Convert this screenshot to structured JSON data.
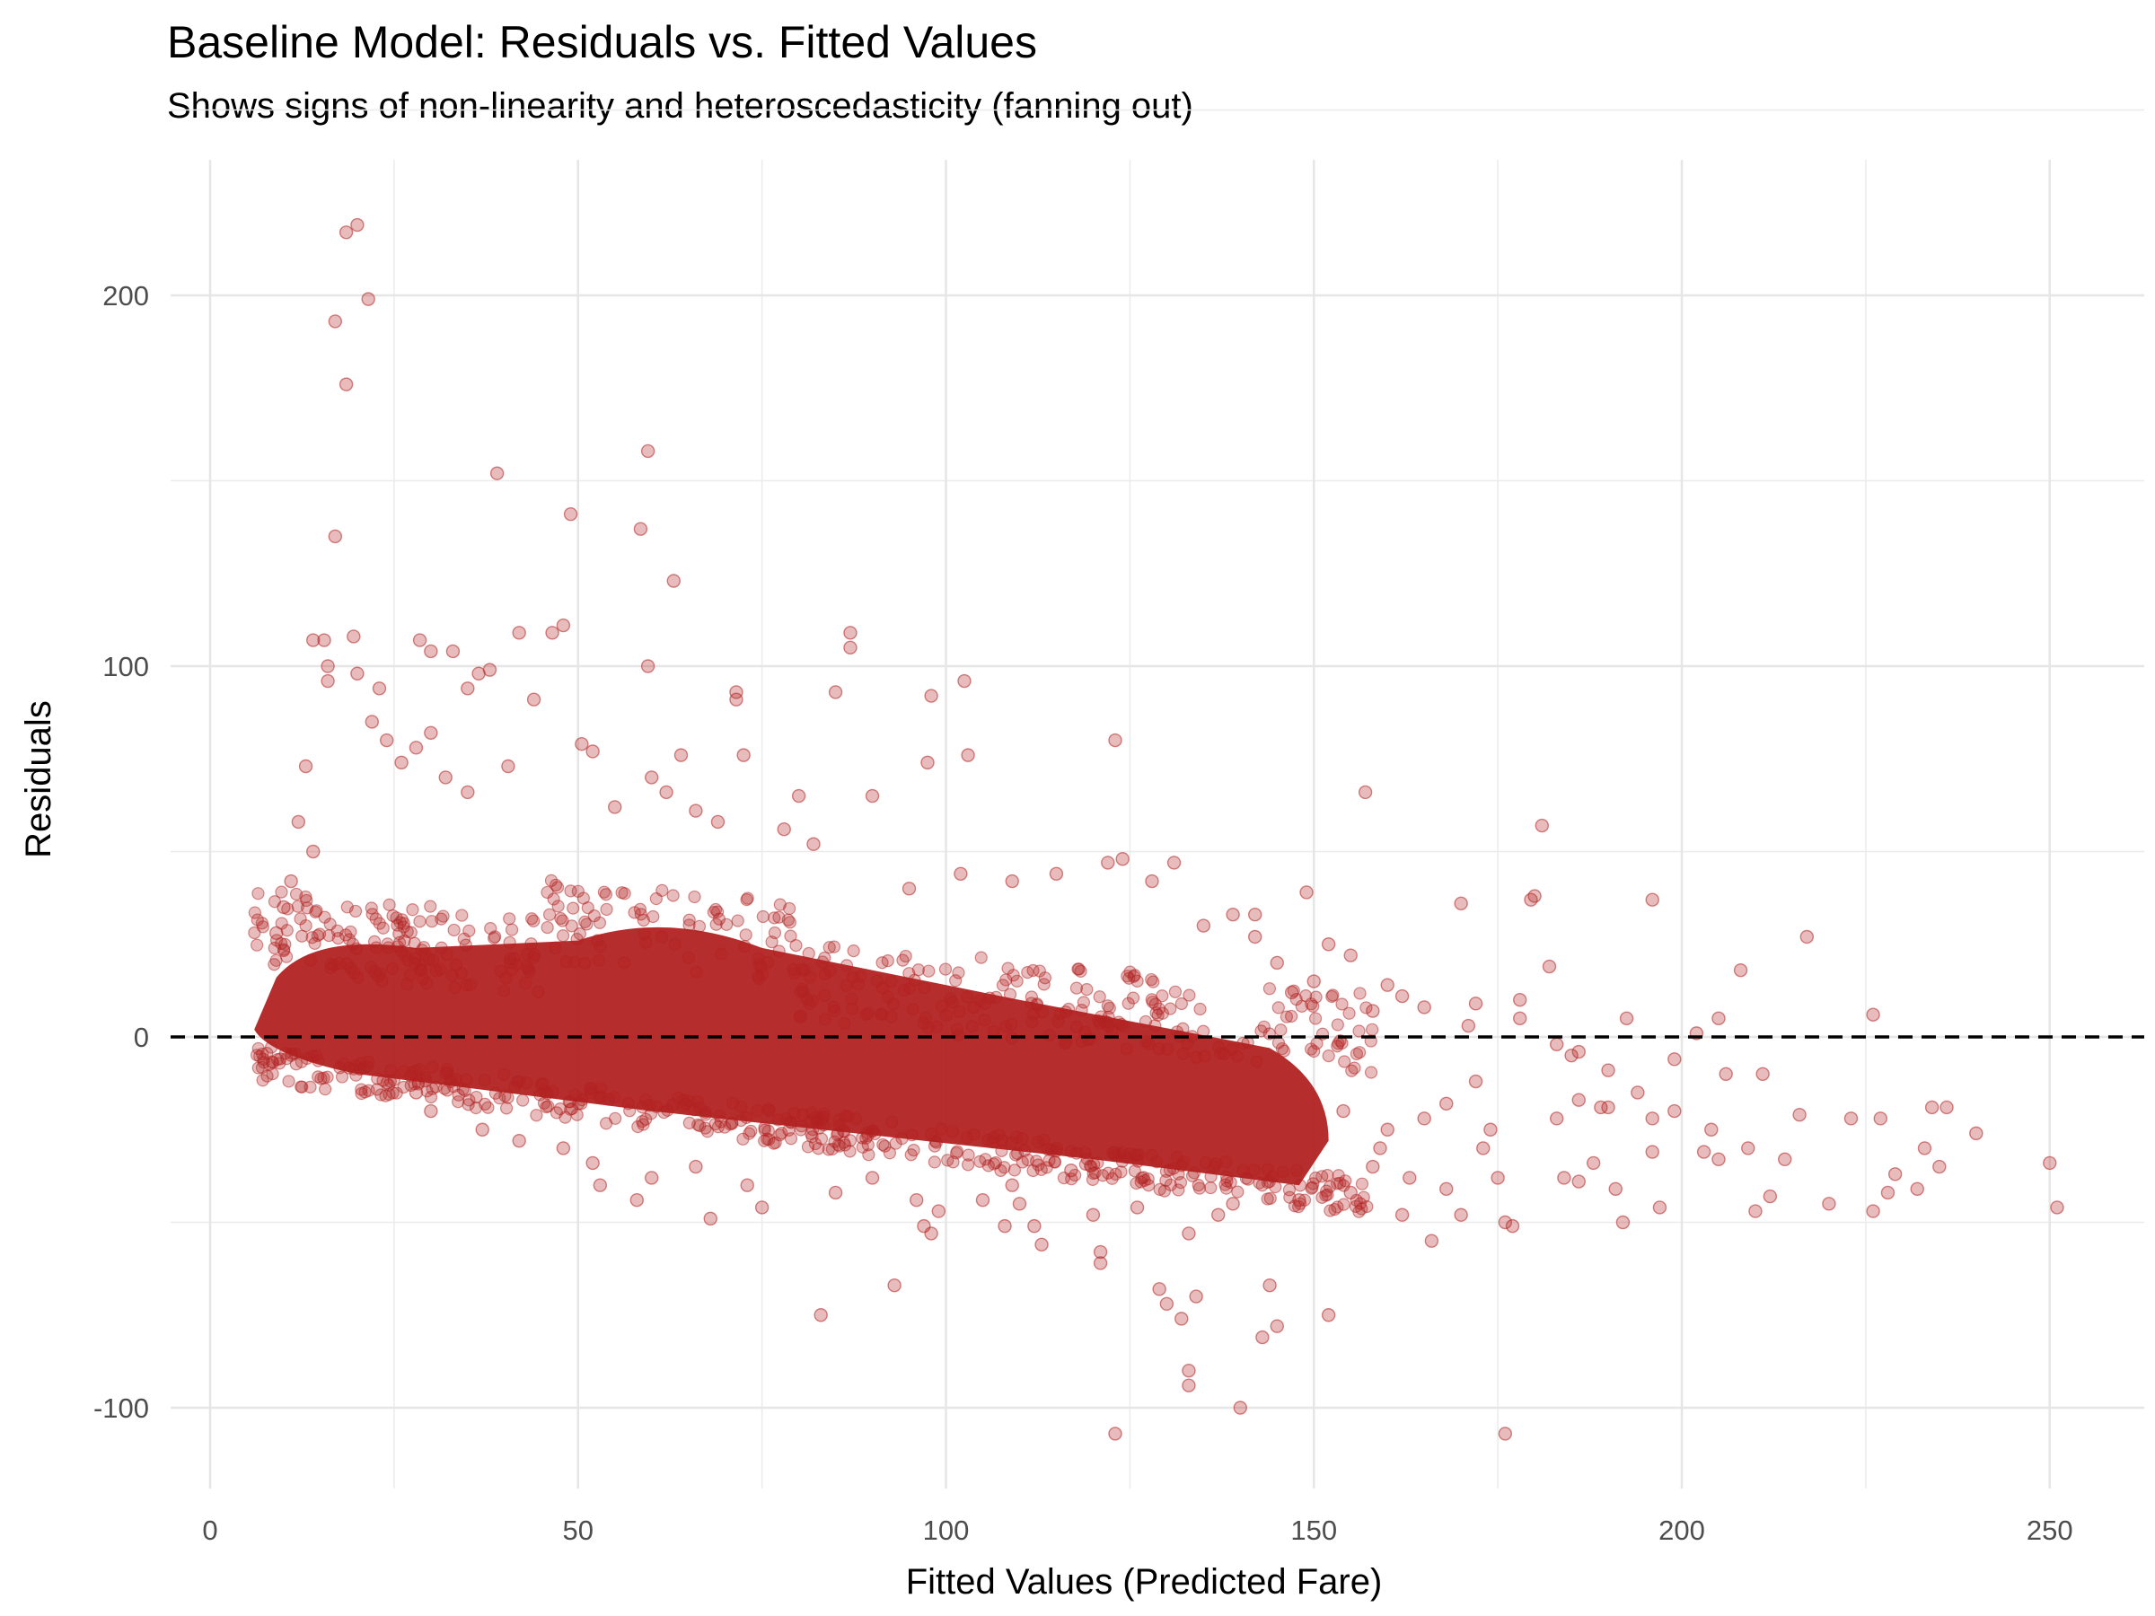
{
  "chart_data": {
    "type": "scatter",
    "title": "Baseline Model: Residuals vs. Fitted Values",
    "subtitle": "Shows signs of non-linearity and heteroscedasticity (fanning out)",
    "xlabel": "Fitted Values (Predicted Fare)",
    "ylabel": "Residuals",
    "xlim": [
      -5,
      262
    ],
    "ylim": [
      -122,
      235
    ],
    "x_ticks": [
      0,
      50,
      100,
      150,
      200,
      250
    ],
    "x_tick_labels": [
      "0",
      "50",
      "100",
      "150",
      "200",
      "250"
    ],
    "y_ticks": [
      -100,
      0,
      100,
      200
    ],
    "y_tick_labels": [
      "-100",
      "0",
      "100",
      "200"
    ],
    "grid": true,
    "point_color": "#B22222",
    "point_alpha": 0.3,
    "reference_line": {
      "y": 0,
      "style": "dashed",
      "color": "#000000"
    },
    "dense_band": {
      "description": "very dense core of thousands of points",
      "x_from": 6,
      "x_to": 152,
      "upper_at_start": 22,
      "upper_at_end": -5,
      "lower_at_start": -5,
      "lower_at_end": -40
    },
    "points": [
      [
        18.5,
        217
      ],
      [
        20,
        219
      ],
      [
        21.5,
        199
      ],
      [
        17,
        193
      ],
      [
        18.5,
        176
      ],
      [
        17,
        135
      ],
      [
        39,
        152
      ],
      [
        59.5,
        158
      ],
      [
        49,
        141
      ],
      [
        58.5,
        137
      ],
      [
        63,
        123
      ],
      [
        14,
        107
      ],
      [
        15.5,
        107
      ],
      [
        28.5,
        107
      ],
      [
        19.5,
        108
      ],
      [
        42,
        109
      ],
      [
        46.5,
        109
      ],
      [
        48,
        111
      ],
      [
        30,
        104
      ],
      [
        33,
        104
      ],
      [
        87,
        109
      ],
      [
        87,
        105
      ],
      [
        59.5,
        100
      ],
      [
        16,
        100
      ],
      [
        20,
        98
      ],
      [
        36.5,
        98
      ],
      [
        38,
        99
      ],
      [
        35,
        94
      ],
      [
        23,
        94
      ],
      [
        16,
        96
      ],
      [
        44,
        91
      ],
      [
        71.5,
        93
      ],
      [
        71.5,
        91
      ],
      [
        85,
        93
      ],
      [
        98,
        92
      ],
      [
        102.5,
        96
      ],
      [
        103,
        76
      ],
      [
        123,
        80
      ],
      [
        97.5,
        74
      ],
      [
        72.5,
        76
      ],
      [
        50.5,
        79
      ],
      [
        52,
        77
      ],
      [
        64,
        76
      ],
      [
        40.5,
        73
      ],
      [
        157,
        66
      ],
      [
        90,
        65
      ],
      [
        80,
        65
      ],
      [
        181,
        57
      ],
      [
        170,
        36
      ],
      [
        179.5,
        37
      ],
      [
        180,
        38
      ],
      [
        217,
        27
      ],
      [
        196,
        37
      ],
      [
        182,
        19
      ],
      [
        208,
        18
      ],
      [
        226,
        6
      ],
      [
        205,
        5
      ],
      [
        192.5,
        5
      ],
      [
        202,
        1
      ],
      [
        131,
        47
      ],
      [
        122,
        47
      ],
      [
        124,
        48
      ],
      [
        149,
        39
      ],
      [
        139,
        33
      ],
      [
        142,
        33
      ],
      [
        160,
        14
      ],
      [
        162,
        11
      ],
      [
        172,
        9
      ],
      [
        178,
        10
      ],
      [
        190,
        -9
      ],
      [
        199,
        -6
      ],
      [
        211,
        -10
      ],
      [
        216,
        -21
      ],
      [
        223,
        -22
      ],
      [
        227,
        -22
      ],
      [
        234,
        -19
      ],
      [
        236,
        -19
      ],
      [
        240,
        -26
      ],
      [
        206,
        -10
      ],
      [
        194,
        -15
      ],
      [
        189,
        -19
      ],
      [
        183,
        -22
      ],
      [
        186,
        -17
      ],
      [
        196,
        -22
      ],
      [
        204,
        -25
      ],
      [
        203,
        -31
      ],
      [
        205,
        -33
      ],
      [
        212,
        -43
      ],
      [
        210,
        -47
      ],
      [
        220,
        -45
      ],
      [
        226,
        -47
      ],
      [
        229,
        -37
      ],
      [
        228,
        -42
      ],
      [
        233,
        -30
      ],
      [
        235,
        -35
      ],
      [
        232,
        -41
      ],
      [
        250,
        -34
      ],
      [
        251,
        -46
      ],
      [
        197,
        -46
      ],
      [
        192,
        -50
      ],
      [
        191,
        -41
      ],
      [
        188,
        -34
      ],
      [
        186,
        -39
      ],
      [
        184,
        -38
      ],
      [
        176,
        -50
      ],
      [
        177,
        -51
      ],
      [
        170,
        -48
      ],
      [
        166,
        -55
      ],
      [
        162,
        -48
      ],
      [
        168,
        -41
      ],
      [
        163,
        -38
      ],
      [
        159,
        -30
      ],
      [
        173,
        -30
      ],
      [
        175,
        -38
      ],
      [
        176,
        -107
      ],
      [
        140,
        -100
      ],
      [
        123,
        -107
      ],
      [
        133,
        -90
      ],
      [
        133,
        -94
      ],
      [
        143,
        -81
      ],
      [
        145,
        -78
      ],
      [
        152,
        -75
      ],
      [
        144,
        -67
      ],
      [
        134,
        -70
      ],
      [
        132,
        -76
      ],
      [
        130,
        -72
      ],
      [
        129,
        -68
      ],
      [
        121,
        -58
      ],
      [
        121,
        -61
      ],
      [
        113,
        -56
      ],
      [
        112,
        -51
      ],
      [
        108,
        -51
      ],
      [
        133,
        -53
      ],
      [
        93,
        -67
      ],
      [
        83,
        -75
      ],
      [
        98,
        -53
      ],
      [
        99,
        -47
      ],
      [
        97,
        -51
      ],
      [
        96,
        -44
      ],
      [
        68,
        -49
      ],
      [
        75,
        -46
      ],
      [
        58,
        -44
      ],
      [
        53,
        -40
      ],
      [
        117,
        -36
      ],
      [
        109,
        -40
      ],
      [
        126,
        -46
      ],
      [
        137,
        -48
      ],
      [
        115,
        44
      ],
      [
        109,
        42
      ],
      [
        102,
        44
      ],
      [
        95,
        40
      ],
      [
        128,
        42
      ],
      [
        135,
        30
      ],
      [
        142,
        27
      ],
      [
        145,
        20
      ],
      [
        152,
        25
      ],
      [
        155,
        22
      ],
      [
        147,
        12
      ],
      [
        150,
        15
      ],
      [
        158,
        7
      ],
      [
        165,
        8
      ],
      [
        171,
        3
      ],
      [
        178,
        5
      ],
      [
        183,
        -2
      ],
      [
        185,
        -5
      ],
      [
        186,
        -4
      ],
      [
        190,
        -19
      ],
      [
        196,
        -31
      ],
      [
        199,
        -20
      ],
      [
        209,
        -30
      ],
      [
        214,
        -33
      ],
      [
        60,
        70
      ],
      [
        62,
        66
      ],
      [
        55,
        62
      ],
      [
        66,
        61
      ],
      [
        69,
        58
      ],
      [
        78,
        56
      ],
      [
        82,
        52
      ],
      [
        30,
        82
      ],
      [
        28,
        78
      ],
      [
        24,
        80
      ],
      [
        22,
        85
      ],
      [
        26,
        74
      ],
      [
        32,
        70
      ],
      [
        35,
        66
      ],
      [
        13,
        73
      ],
      [
        12,
        58
      ],
      [
        14,
        50
      ],
      [
        11,
        42
      ],
      [
        10,
        35
      ],
      [
        9,
        28
      ],
      [
        30,
        -20
      ],
      [
        28,
        -15
      ],
      [
        37,
        -25
      ],
      [
        42,
        -28
      ],
      [
        48,
        -30
      ],
      [
        52,
        -34
      ],
      [
        60,
        -38
      ],
      [
        66,
        -35
      ],
      [
        73,
        -40
      ],
      [
        85,
        -42
      ],
      [
        90,
        -38
      ],
      [
        105,
        -44
      ],
      [
        110,
        -45
      ],
      [
        120,
        -48
      ],
      [
        139,
        -45
      ],
      [
        148,
        -44
      ],
      [
        155,
        -42
      ],
      [
        158,
        -35
      ],
      [
        154,
        -20
      ],
      [
        160,
        -25
      ],
      [
        165,
        -22
      ],
      [
        168,
        -18
      ],
      [
        172,
        -12
      ],
      [
        174,
        -25
      ]
    ]
  }
}
